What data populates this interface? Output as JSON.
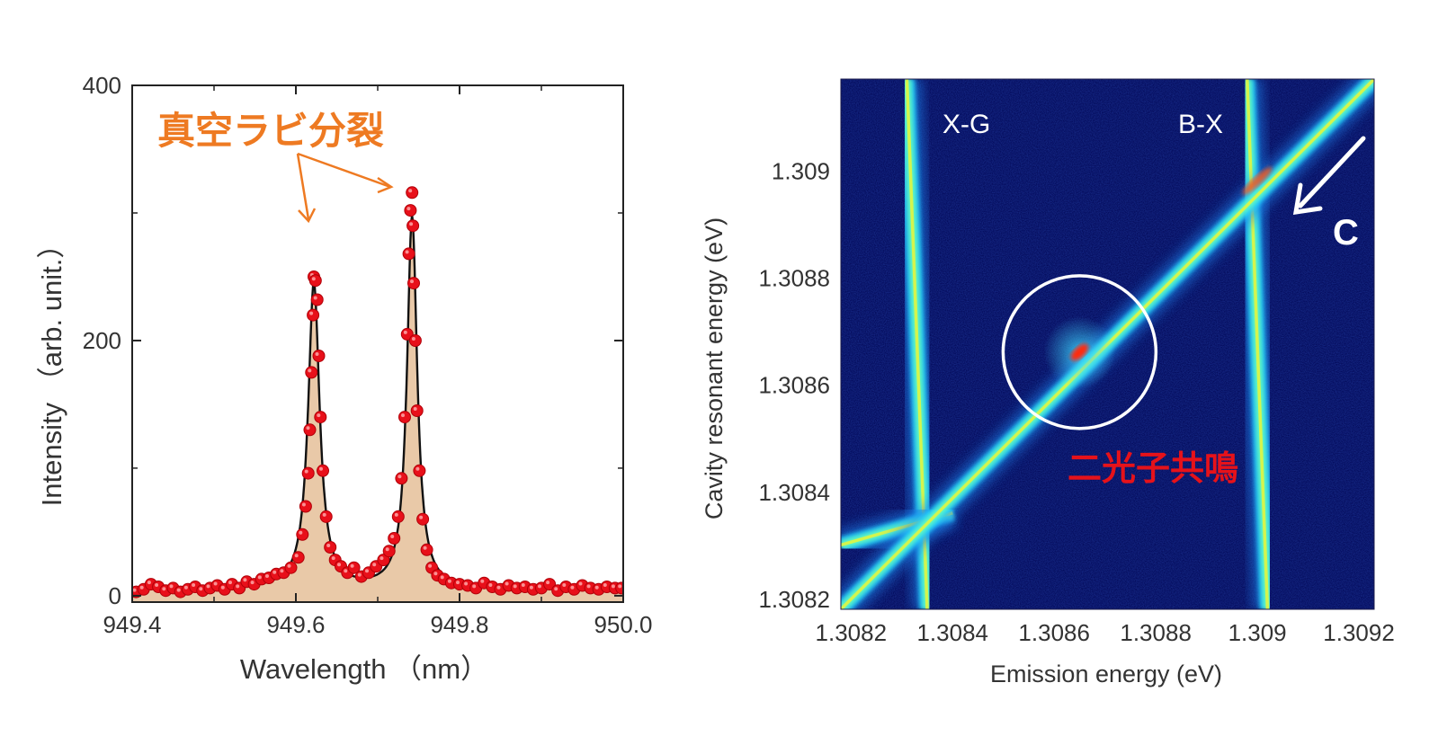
{
  "chart_data": [
    {
      "type": "scatter",
      "xlabel": "Wavelength （nm）",
      "ylabel": "Intensity （arb. unit.）",
      "xlim": [
        949.4,
        950.0
      ],
      "ylim": [
        -5,
        400
      ],
      "x_ticks": [
        "949.4",
        "949.6",
        "949.8",
        "950.0"
      ],
      "y_ticks": [
        "0",
        "200",
        "400"
      ],
      "annotation": "真空ラビ分裂",
      "colors": {
        "points": "#e8101a",
        "fill": "#e9c9a8",
        "curve": "#111111",
        "annotation": "#ee7a22"
      },
      "fit": {
        "baseline": 5,
        "peaks": [
          {
            "center": 949.622,
            "amplitude": 240,
            "hwhm": 0.0085
          },
          {
            "center": 949.742,
            "amplitude": 292,
            "hwhm": 0.0075
          }
        ]
      },
      "points": {
        "x": [
          949.405,
          949.414,
          949.423,
          949.432,
          949.441,
          949.45,
          949.459,
          949.468,
          949.477,
          949.486,
          949.495,
          949.504,
          949.513,
          949.522,
          949.531,
          949.54,
          949.549,
          949.558,
          949.567,
          949.576,
          949.585,
          949.594,
          949.603,
          949.608,
          949.612,
          949.615,
          949.617,
          949.619,
          949.621,
          949.622,
          949.624,
          949.626,
          949.628,
          949.63,
          949.633,
          949.637,
          949.642,
          949.648,
          949.655,
          949.663,
          949.671,
          949.68,
          949.689,
          949.698,
          949.707,
          949.714,
          949.72,
          949.725,
          949.729,
          949.733,
          949.736,
          949.738,
          949.74,
          949.742,
          949.743,
          949.744,
          949.746,
          949.748,
          949.751,
          949.755,
          949.76,
          949.766,
          949.773,
          949.781,
          949.79,
          949.8,
          949.81,
          949.82,
          949.83,
          949.84,
          949.85,
          949.86,
          949.87,
          949.88,
          949.89,
          949.9,
          949.91,
          949.92,
          949.93,
          949.94,
          949.95,
          949.96,
          949.97,
          949.98,
          949.99,
          949.998
        ],
        "y": [
          3,
          5,
          9,
          7,
          4,
          6,
          3,
          5,
          7,
          4,
          6,
          8,
          5,
          9,
          6,
          11,
          9,
          13,
          14,
          17,
          18,
          22,
          30,
          48,
          70,
          96,
          130,
          175,
          220,
          250,
          247,
          232,
          188,
          140,
          98,
          62,
          38,
          28,
          23,
          18,
          22,
          15,
          18,
          23,
          28,
          35,
          45,
          62,
          92,
          140,
          205,
          268,
          302,
          316,
          290,
          245,
          200,
          145,
          98,
          60,
          36,
          22,
          16,
          13,
          10,
          9,
          8,
          6,
          10,
          7,
          5,
          8,
          6,
          7,
          5,
          6,
          9,
          4,
          7,
          5,
          8,
          6,
          5,
          7,
          6,
          6
        ]
      }
    },
    {
      "type": "heatmap",
      "xlabel": "Emission energy (eV)",
      "ylabel": "Cavity resonant energy (eV)",
      "xlim": [
        1.30818,
        1.30923
      ],
      "ylim": [
        1.30818,
        1.30917
      ],
      "x_ticks": [
        "1.3082",
        "1.3084",
        "1.3086",
        "1.3088",
        "1.309",
        "1.3092"
      ],
      "y_ticks": [
        "1.3082",
        "1.3084",
        "1.3086",
        "1.3088",
        "1.309"
      ],
      "labels": {
        "xg": "X-G",
        "bx": "B-X",
        "c": "C",
        "circle": "二光子共鳴"
      },
      "colors": {
        "background": "#030a5a",
        "circle_label": "#e6121a",
        "marks": "#ffffff"
      },
      "features": {
        "xg_line": {
          "x_top": 1.30831,
          "x_bottom": 1.30835
        },
        "bx_line": {
          "x_top": 1.30898,
          "x_bottom": 1.30902
        },
        "c_line": {
          "x1": 1.30818,
          "y1": 1.30818,
          "x2": 1.30923,
          "y2": 1.30917
        },
        "x_lower_branch": {
          "x1": 1.30818,
          "y1": 1.3083,
          "x2": 1.3084,
          "y2": 1.30836
        },
        "circle": {
          "x": 1.30865,
          "y": 1.30866,
          "r_eV": 0.00015
        }
      }
    }
  ]
}
